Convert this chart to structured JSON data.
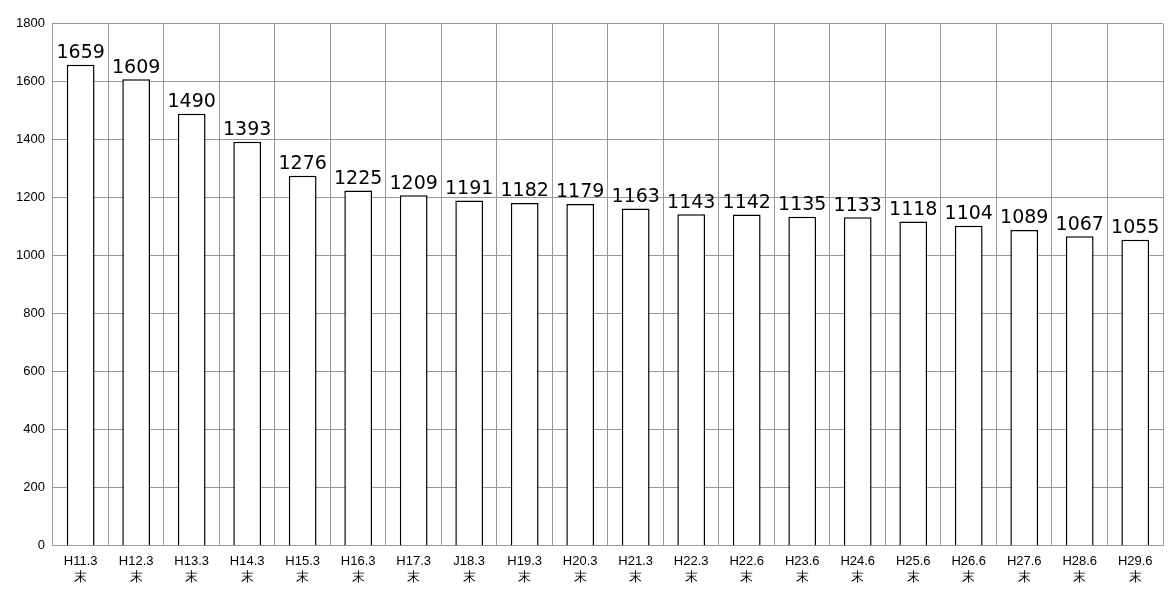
{
  "chart_data": {
    "type": "bar",
    "categories": [
      "H11.3\n末",
      "H12.3\n末",
      "H13.3\n末",
      "H14.3\n末",
      "H15.3\n末",
      "H16.3\n末",
      "H17.3\n末",
      "J18.3\n末",
      "H19.3\n末",
      "H20.3\n末",
      "H21.3\n末",
      "H22.3\n末",
      "H22.6\n末",
      "H23.6\n末",
      "H24.6\n末",
      "H25.6\n末",
      "H26.6\n末",
      "H27.6\n末",
      "H28.6\n末",
      "H29.6\n末"
    ],
    "values": [
      1659,
      1609,
      1490,
      1393,
      1276,
      1225,
      1209,
      1191,
      1182,
      1179,
      1163,
      1143,
      1142,
      1135,
      1133,
      1118,
      1104,
      1089,
      1067,
      1055
    ],
    "color": "#ffffff",
    "ylim": [
      0,
      1800
    ],
    "yticks": [
      0,
      200,
      400,
      600,
      800,
      1000,
      1200,
      1400,
      1600,
      1800
    ],
    "grid": true,
    "data_labels": true
  }
}
